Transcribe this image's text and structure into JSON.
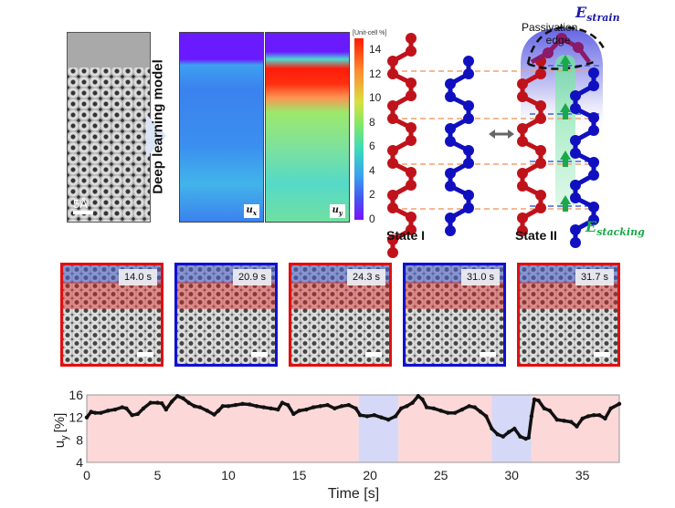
{
  "top_panel": {
    "stem_scale_label": "5Å",
    "model_label": "Deep learning model",
    "map_labels": [
      "u_x",
      "u_y"
    ],
    "map_labels_display": {
      "ux_base": "u",
      "ux_sub": "x",
      "uy_base": "u",
      "uy_sub": "y"
    },
    "colorbar": {
      "title": "[Unit-cell %]",
      "ticks": [
        "14",
        "12",
        "10",
        "8",
        "6",
        "4",
        "2",
        "0"
      ],
      "min": 0,
      "max": 15
    },
    "state_labels": [
      "State I",
      "State II"
    ],
    "passivation_label": [
      "Passivation",
      "edge"
    ],
    "e_strain": {
      "base": "E",
      "sub": "strain",
      "color": "#1a1aa8"
    },
    "e_stacking": {
      "base": "E",
      "sub": "stacking",
      "color": "#1aa84a"
    },
    "colors": {
      "red_chain": "#c0121a",
      "blue_chain": "#1010c0",
      "dash_orange": "#f0a070",
      "dash_blue": "#4060d0"
    }
  },
  "snapshots": [
    {
      "time": "14.0 s",
      "state": "I",
      "border": "#e01010"
    },
    {
      "time": "20.9 s",
      "state": "II",
      "border": "#1010d0"
    },
    {
      "time": "24.3 s",
      "state": "I",
      "border": "#e01010"
    },
    {
      "time": "31.0 s",
      "state": "II",
      "border": "#1010d0"
    },
    {
      "time": "31.7 s",
      "state": "I",
      "border": "#e01010"
    }
  ],
  "chart_data": {
    "type": "line",
    "title": "",
    "xlabel": "Time [s]",
    "ylabel": "u_y [%]",
    "ylabel_display": {
      "base": "u",
      "sub": "y",
      "unit": "[%]"
    },
    "xlim": [
      0,
      37.6
    ],
    "ylim": [
      4,
      16
    ],
    "xticks": [
      "0",
      "5",
      "10",
      "15",
      "20",
      "25",
      "30",
      "35"
    ],
    "yticks": [
      "4",
      "8",
      "12",
      "16"
    ],
    "grid": false,
    "background_bands": [
      {
        "from": 0,
        "to": 19.2,
        "state": "I",
        "color": "#fcd8d8"
      },
      {
        "from": 19.2,
        "to": 22.0,
        "state": "II",
        "color": "#d6d8f8"
      },
      {
        "from": 22.0,
        "to": 28.6,
        "state": "I",
        "color": "#fcd8d8"
      },
      {
        "from": 28.6,
        "to": 31.4,
        "state": "II",
        "color": "#d6d8f8"
      },
      {
        "from": 31.4,
        "to": 37.6,
        "state": "I",
        "color": "#fcd8d8"
      }
    ],
    "series": [
      {
        "name": "u_y",
        "color": "#111111",
        "x": [
          0,
          0.3,
          0.6,
          1.0,
          1.5,
          2.0,
          2.5,
          2.8,
          3.2,
          3.6,
          4.0,
          4.5,
          5.0,
          5.3,
          5.6,
          6.0,
          6.4,
          6.8,
          7.2,
          7.6,
          8.0,
          8.5,
          9.0,
          9.3,
          9.6,
          10.0,
          10.5,
          11.0,
          11.5,
          12.0,
          12.5,
          13.0,
          13.5,
          13.8,
          14.2,
          14.6,
          15.0,
          15.5,
          16.0,
          16.5,
          17.0,
          17.5,
          18.0,
          18.5,
          19.0,
          19.3,
          19.8,
          20.3,
          20.8,
          21.3,
          21.8,
          22.2,
          22.6,
          23.0,
          23.4,
          23.7,
          24.0,
          24.5,
          25.0,
          25.5,
          26.0,
          26.5,
          27.0,
          27.4,
          27.8,
          28.2,
          28.6,
          29.0,
          29.4,
          29.8,
          30.2,
          30.6,
          31.0,
          31.2,
          31.4,
          31.6,
          31.9,
          32.3,
          32.7,
          33.2,
          33.7,
          34.2,
          34.6,
          35.0,
          35.4,
          35.8,
          36.2,
          36.6,
          37.0,
          37.6
        ],
        "values": [
          12.0,
          13.0,
          12.8,
          12.8,
          13.2,
          13.4,
          13.8,
          13.6,
          12.4,
          12.6,
          13.6,
          14.6,
          14.6,
          14.5,
          13.4,
          14.8,
          15.8,
          15.4,
          14.6,
          14.0,
          13.8,
          13.2,
          12.5,
          13.2,
          14.0,
          14.0,
          14.2,
          14.4,
          14.3,
          14.0,
          13.8,
          13.6,
          13.4,
          14.6,
          14.2,
          12.6,
          13.2,
          13.4,
          13.8,
          14.0,
          14.2,
          13.6,
          14.0,
          14.2,
          13.6,
          12.4,
          12.2,
          12.4,
          12.0,
          11.6,
          12.2,
          13.6,
          14.0,
          14.6,
          15.8,
          15.2,
          13.8,
          13.6,
          13.2,
          12.8,
          12.8,
          13.4,
          14.0,
          13.8,
          13.0,
          12.2,
          10.0,
          9.0,
          8.6,
          9.4,
          10.0,
          8.6,
          8.2,
          8.4,
          12.2,
          15.2,
          15.0,
          13.6,
          13.2,
          11.6,
          11.4,
          11.2,
          10.4,
          11.8,
          12.2,
          12.4,
          12.4,
          11.8,
          13.6,
          14.4
        ]
      }
    ]
  }
}
